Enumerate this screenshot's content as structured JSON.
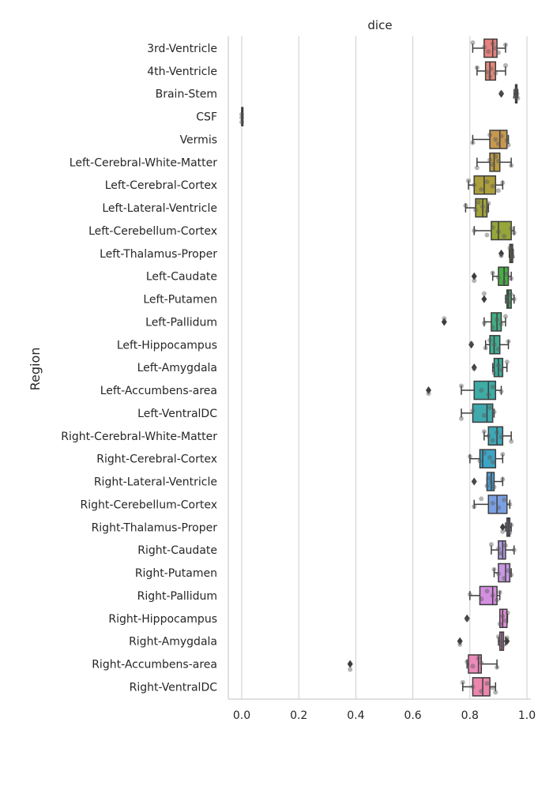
{
  "chart_data": {
    "type": "box",
    "orientation": "horizontal",
    "title": "dice",
    "xlabel": "",
    "ylabel": "Region",
    "xlim": [
      -0.05,
      1.02
    ],
    "xticks": [
      "0.0",
      "0.2",
      "0.4",
      "0.6",
      "0.8",
      "1.0"
    ],
    "grid": "vertical",
    "legend": "none",
    "strip_points": "overlaid grey dots",
    "series": [
      {
        "category": "3rd-Ventricle",
        "color": "#e8827f",
        "min": 0.81,
        "q1": 0.85,
        "median": 0.88,
        "q3": 0.895,
        "max": 0.925,
        "outliers": [],
        "points": [
          0.81,
          0.85,
          0.865,
          0.88,
          0.89,
          0.9,
          0.925
        ]
      },
      {
        "category": "4th-Ventricle",
        "color": "#e5897a",
        "min": 0.825,
        "q1": 0.855,
        "median": 0.87,
        "q3": 0.89,
        "max": 0.925,
        "outliers": [],
        "points": [
          0.825,
          0.86,
          0.87,
          0.875,
          0.89,
          0.925
        ]
      },
      {
        "category": "Brain-Stem",
        "color": "#dc8f6e",
        "min": 0.955,
        "q1": 0.96,
        "median": 0.962,
        "q3": 0.965,
        "max": 0.968,
        "outliers": [
          0.91
        ],
        "points": [
          0.91,
          0.958,
          0.962,
          0.965,
          0.968
        ]
      },
      {
        "category": "CSF",
        "color": "#d29360",
        "min": 0.0,
        "q1": 0.0,
        "median": 0.0,
        "q3": 0.0,
        "max": 0.0,
        "outliers": [],
        "points": [
          0.0,
          0.0,
          0.0
        ]
      },
      {
        "category": "Vermis",
        "color": "#c7984f",
        "min": 0.81,
        "q1": 0.87,
        "median": 0.905,
        "q3": 0.93,
        "max": 0.935,
        "outliers": [],
        "points": [
          0.81,
          0.87,
          0.89,
          0.9,
          0.91,
          0.93,
          0.935
        ]
      },
      {
        "category": "Left-Cerebral-White-Matter",
        "color": "#bb9c42",
        "min": 0.825,
        "q1": 0.87,
        "median": 0.885,
        "q3": 0.905,
        "max": 0.945,
        "outliers": [],
        "points": [
          0.825,
          0.87,
          0.88,
          0.89,
          0.9,
          0.945
        ]
      },
      {
        "category": "Left-Cerebral-Cortex",
        "color": "#ad9f3c",
        "min": 0.795,
        "q1": 0.815,
        "median": 0.85,
        "q3": 0.89,
        "max": 0.915,
        "outliers": [],
        "points": [
          0.795,
          0.815,
          0.84,
          0.86,
          0.88,
          0.9,
          0.915
        ]
      },
      {
        "category": "Left-Lateral-Ventricle",
        "color": "#a2a33b",
        "min": 0.785,
        "q1": 0.82,
        "median": 0.845,
        "q3": 0.86,
        "max": 0.865,
        "outliers": [],
        "points": [
          0.785,
          0.82,
          0.83,
          0.845,
          0.86,
          0.865
        ]
      },
      {
        "category": "Left-Cerebellum-Cortex",
        "color": "#96a63a",
        "min": 0.815,
        "q1": 0.875,
        "median": 0.9,
        "q3": 0.945,
        "max": 0.955,
        "outliers": [],
        "points": [
          0.815,
          0.86,
          0.88,
          0.9,
          0.92,
          0.945,
          0.955
        ]
      },
      {
        "category": "Left-Thalamus-Proper",
        "color": "#87a938",
        "min": 0.938,
        "q1": 0.94,
        "median": 0.945,
        "q3": 0.95,
        "max": 0.952,
        "outliers": [
          0.91
        ],
        "points": [
          0.91,
          0.94,
          0.945,
          0.95
        ]
      },
      {
        "category": "Left-Caudate",
        "color": "#4aad46",
        "min": 0.88,
        "q1": 0.9,
        "median": 0.92,
        "q3": 0.935,
        "max": 0.945,
        "outliers": [
          0.815
        ],
        "points": [
          0.815,
          0.88,
          0.9,
          0.92,
          0.93,
          0.945
        ]
      },
      {
        "category": "Left-Putamen",
        "color": "#45ad6c",
        "min": 0.925,
        "q1": 0.93,
        "median": 0.935,
        "q3": 0.945,
        "max": 0.955,
        "outliers": [
          0.85
        ],
        "points": [
          0.85,
          0.93,
          0.935,
          0.945,
          0.955
        ]
      },
      {
        "category": "Left-Pallidum",
        "color": "#41ad83",
        "min": 0.85,
        "q1": 0.875,
        "median": 0.895,
        "q3": 0.91,
        "max": 0.925,
        "outliers": [
          0.71
        ],
        "points": [
          0.71,
          0.85,
          0.88,
          0.895,
          0.91,
          0.925
        ]
      },
      {
        "category": "Left-Hippocampus",
        "color": "#3fad90",
        "min": 0.855,
        "q1": 0.87,
        "median": 0.885,
        "q3": 0.905,
        "max": 0.935,
        "outliers": [
          0.805
        ],
        "points": [
          0.805,
          0.855,
          0.87,
          0.885,
          0.9,
          0.935
        ]
      },
      {
        "category": "Left-Amygdala",
        "color": "#3eac9b",
        "min": 0.88,
        "q1": 0.885,
        "median": 0.9,
        "q3": 0.915,
        "max": 0.93,
        "outliers": [
          0.815
        ],
        "points": [
          0.815,
          0.885,
          0.9,
          0.91,
          0.93
        ]
      },
      {
        "category": "Left-Accumbens-area",
        "color": "#3eaba5",
        "min": 0.77,
        "q1": 0.815,
        "median": 0.865,
        "q3": 0.89,
        "max": 0.91,
        "outliers": [
          0.655
        ],
        "points": [
          0.655,
          0.77,
          0.84,
          0.865,
          0.88,
          0.91
        ]
      },
      {
        "category": "Left-VentralDC",
        "color": "#3fa9ae",
        "min": 0.77,
        "q1": 0.81,
        "median": 0.86,
        "q3": 0.88,
        "max": 0.885,
        "outliers": [],
        "points": [
          0.77,
          0.81,
          0.85,
          0.87,
          0.885
        ]
      },
      {
        "category": "Right-Cerebral-White-Matter",
        "color": "#3ea8b8",
        "min": 0.85,
        "q1": 0.865,
        "median": 0.895,
        "q3": 0.915,
        "max": 0.945,
        "outliers": [],
        "points": [
          0.85,
          0.865,
          0.88,
          0.895,
          0.91,
          0.945
        ]
      },
      {
        "category": "Right-Cerebral-Cortex",
        "color": "#3ea5c6",
        "min": 0.8,
        "q1": 0.835,
        "median": 0.845,
        "q3": 0.89,
        "max": 0.915,
        "outliers": [],
        "points": [
          0.8,
          0.835,
          0.85,
          0.87,
          0.88,
          0.915
        ]
      },
      {
        "category": "Right-Lateral-Ventricle",
        "color": "#49a0d8",
        "min": 0.86,
        "q1": 0.86,
        "median": 0.875,
        "q3": 0.885,
        "max": 0.915,
        "outliers": [
          0.815
        ],
        "points": [
          0.815,
          0.86,
          0.87,
          0.875,
          0.885,
          0.915
        ]
      },
      {
        "category": "Right-Cerebellum-Cortex",
        "color": "#7aa0e3",
        "min": 0.815,
        "q1": 0.865,
        "median": 0.895,
        "q3": 0.93,
        "max": 0.94,
        "outliers": [],
        "points": [
          0.815,
          0.84,
          0.88,
          0.9,
          0.92,
          0.94
        ]
      },
      {
        "category": "Right-Thalamus-Proper",
        "color": "#9c9ee3",
        "min": 0.925,
        "q1": 0.93,
        "median": 0.935,
        "q3": 0.94,
        "max": 0.945,
        "outliers": [
          0.915
        ],
        "points": [
          0.915,
          0.93,
          0.935,
          0.94,
          0.945
        ]
      },
      {
        "category": "Right-Caudate",
        "color": "#b19ae3",
        "min": 0.875,
        "q1": 0.9,
        "median": 0.915,
        "q3": 0.925,
        "max": 0.955,
        "outliers": [],
        "points": [
          0.875,
          0.9,
          0.91,
          0.925,
          0.955
        ]
      },
      {
        "category": "Right-Putamen",
        "color": "#c797e3",
        "min": 0.885,
        "q1": 0.9,
        "median": 0.925,
        "q3": 0.94,
        "max": 0.945,
        "outliers": [],
        "points": [
          0.885,
          0.9,
          0.92,
          0.935,
          0.945
        ]
      },
      {
        "category": "Right-Pallidum",
        "color": "#d58fe0",
        "min": 0.8,
        "q1": 0.835,
        "median": 0.88,
        "q3": 0.895,
        "max": 0.905,
        "outliers": [],
        "points": [
          0.8,
          0.84,
          0.86,
          0.88,
          0.895,
          0.905
        ]
      },
      {
        "category": "Right-Hippocampus",
        "color": "#e38bd8",
        "min": 0.905,
        "q1": 0.905,
        "median": 0.915,
        "q3": 0.93,
        "max": 0.932,
        "outliers": [
          0.79
        ],
        "points": [
          0.79,
          0.905,
          0.915,
          0.925,
          0.932
        ]
      },
      {
        "category": "Right-Amygdala",
        "color": "#ea89c9",
        "min": 0.9,
        "q1": 0.905,
        "median": 0.912,
        "q3": 0.918,
        "max": 0.925,
        "outliers": [
          0.765,
          0.93
        ],
        "points": [
          0.765,
          0.9,
          0.91,
          0.915,
          0.93
        ]
      },
      {
        "category": "Right-Accumbens-area",
        "color": "#eb8abb",
        "min": 0.79,
        "q1": 0.795,
        "median": 0.83,
        "q3": 0.84,
        "max": 0.895,
        "outliers": [
          0.38
        ],
        "points": [
          0.38,
          0.79,
          0.81,
          0.83,
          0.84,
          0.895
        ]
      },
      {
        "category": "Right-VentralDC",
        "color": "#eb86ad",
        "min": 0.775,
        "q1": 0.81,
        "median": 0.845,
        "q3": 0.87,
        "max": 0.89,
        "outliers": [],
        "points": [
          0.775,
          0.81,
          0.84,
          0.86,
          0.88,
          0.89
        ]
      }
    ]
  }
}
